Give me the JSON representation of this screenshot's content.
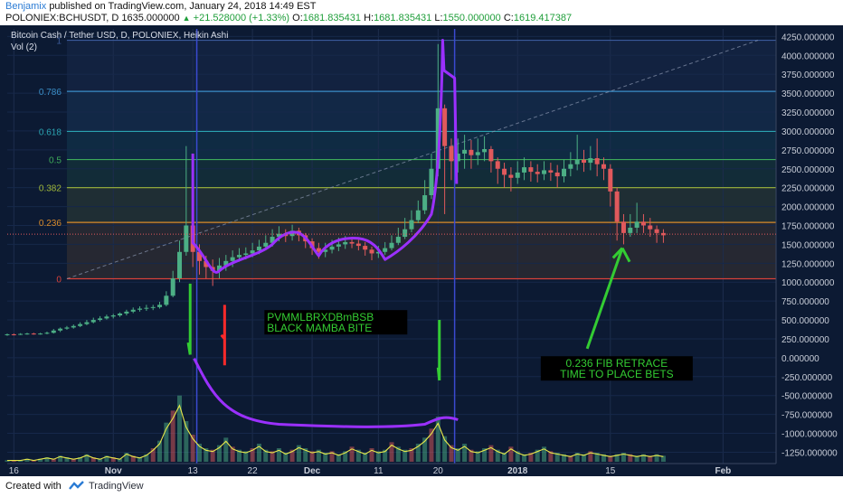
{
  "header": {
    "author": "Benjamix",
    "published_text": "published on TradingView.com, January 24, 2018 14:49 EST",
    "symbol": "POLONIEX:BCHUSDT, D",
    "last_price": "1635.000000",
    "change": "+21.528000 (+1.33%)",
    "ohlc": {
      "o_label": "O:",
      "o": "1681.835431",
      "h_label": "H:",
      "h": "1681.835431",
      "l_label": "L:",
      "l": "1550.000000",
      "c_label": "C:",
      "c": "1619.417387"
    }
  },
  "footer": {
    "created_with": "Created with",
    "brand": "TradingView"
  },
  "colors": {
    "background": "#0c1a33",
    "up": "#4caf85",
    "down": "#e0595c",
    "mamba": "#9b30ff",
    "annotation": "#33cc33",
    "red_mark": "#ff2a2a",
    "vol_line": "#e8e84a"
  },
  "chart_data": {
    "type": "candlestick",
    "title": "Bitcoin Cash / Tether USD, D, POLONIEX, Heikin Ashi",
    "volume_label": "Vol (2)",
    "y_axis": {
      "min": -1400,
      "max": 4350,
      "ticks": [
        "4250.000000",
        "4000.000000",
        "3750.000000",
        "3500.000000",
        "3250.000000",
        "3000.000000",
        "2750.000000",
        "2500.000000",
        "2250.000000",
        "2000.000000",
        "1750.000000",
        "1500.000000",
        "1250.000000",
        "1000.000000",
        "750.000000",
        "500.000000",
        "250.000000",
        "0.000000",
        "-250.000000",
        "-500.000000",
        "-750.000000",
        "-1000.000000",
        "-1250.000000"
      ],
      "tick_values": [
        4250,
        4000,
        3750,
        3500,
        3250,
        3000,
        2750,
        2500,
        2250,
        2000,
        1750,
        1500,
        1250,
        1000,
        750,
        500,
        250,
        0,
        -250,
        -500,
        -750,
        -1000,
        -1250
      ]
    },
    "x_axis": {
      "labels": [
        "16",
        "Nov",
        "13",
        "22",
        "Dec",
        "11",
        "20",
        "2018",
        "15",
        "Feb"
      ],
      "label_days": [
        -15,
        0,
        12,
        21,
        30,
        40,
        49,
        61,
        75,
        92
      ],
      "x_range": [
        -16,
        100
      ]
    },
    "fib_levels": [
      {
        "label": "1",
        "value": 4200,
        "color": "#3b5a9a"
      },
      {
        "label": "0.786",
        "value": 3524,
        "color": "#3a8ec7"
      },
      {
        "label": "0.618",
        "value": 2994,
        "color": "#2aa3b0"
      },
      {
        "label": "0.5",
        "value": 2622,
        "color": "#3daa5a"
      },
      {
        "label": "0.382",
        "value": 2250,
        "color": "#a0b83a"
      },
      {
        "label": "0.236",
        "value": 1790,
        "color": "#d98b2b"
      },
      {
        "label": "0",
        "value": 1045,
        "color": "#d9413a"
      }
    ],
    "current_price": 1635,
    "candles": [
      {
        "d": -16,
        "o": 300,
        "c": 310,
        "h": 320,
        "l": 290
      },
      {
        "d": -15,
        "o": 310,
        "c": 305,
        "h": 320,
        "l": 295
      },
      {
        "d": -14,
        "o": 305,
        "c": 315,
        "h": 325,
        "l": 300
      },
      {
        "d": -13,
        "o": 315,
        "c": 320,
        "h": 330,
        "l": 305
      },
      {
        "d": -12,
        "o": 320,
        "c": 315,
        "h": 330,
        "l": 305
      },
      {
        "d": -11,
        "o": 315,
        "c": 320,
        "h": 330,
        "l": 305
      },
      {
        "d": -10,
        "o": 320,
        "c": 330,
        "h": 345,
        "l": 310
      },
      {
        "d": -9,
        "o": 330,
        "c": 360,
        "h": 380,
        "l": 320
      },
      {
        "d": -8,
        "o": 360,
        "c": 385,
        "h": 400,
        "l": 340
      },
      {
        "d": -7,
        "o": 385,
        "c": 400,
        "h": 420,
        "l": 370
      },
      {
        "d": -6,
        "o": 400,
        "c": 420,
        "h": 440,
        "l": 385
      },
      {
        "d": -5,
        "o": 420,
        "c": 445,
        "h": 470,
        "l": 405
      },
      {
        "d": -4,
        "o": 445,
        "c": 470,
        "h": 500,
        "l": 430
      },
      {
        "d": -3,
        "o": 470,
        "c": 500,
        "h": 530,
        "l": 455
      },
      {
        "d": -2,
        "o": 500,
        "c": 520,
        "h": 550,
        "l": 480
      },
      {
        "d": -1,
        "o": 520,
        "c": 545,
        "h": 570,
        "l": 505
      },
      {
        "d": 0,
        "o": 545,
        "c": 560,
        "h": 580,
        "l": 520
      },
      {
        "d": 1,
        "o": 560,
        "c": 585,
        "h": 600,
        "l": 540
      },
      {
        "d": 2,
        "o": 585,
        "c": 610,
        "h": 635,
        "l": 560
      },
      {
        "d": 3,
        "o": 610,
        "c": 635,
        "h": 665,
        "l": 590
      },
      {
        "d": 4,
        "o": 635,
        "c": 650,
        "h": 680,
        "l": 610
      },
      {
        "d": 5,
        "o": 650,
        "c": 660,
        "h": 700,
        "l": 620
      },
      {
        "d": 6,
        "o": 660,
        "c": 670,
        "h": 700,
        "l": 630
      },
      {
        "d": 7,
        "o": 670,
        "c": 700,
        "h": 740,
        "l": 650
      },
      {
        "d": 8,
        "o": 700,
        "c": 820,
        "h": 880,
        "l": 680
      },
      {
        "d": 9,
        "o": 820,
        "c": 1050,
        "h": 1150,
        "l": 800
      },
      {
        "d": 10,
        "o": 1050,
        "c": 1400,
        "h": 1550,
        "l": 1000
      },
      {
        "d": 11,
        "o": 1400,
        "c": 1750,
        "h": 2800,
        "l": 1350
      },
      {
        "d": 12,
        "o": 1750,
        "c": 1400,
        "h": 1800,
        "l": 1200
      },
      {
        "d": 13,
        "o": 1400,
        "c": 1280,
        "h": 1500,
        "l": 1100
      },
      {
        "d": 14,
        "o": 1280,
        "c": 1200,
        "h": 1350,
        "l": 1050
      },
      {
        "d": 15,
        "o": 1200,
        "c": 1150,
        "h": 1300,
        "l": 950
      },
      {
        "d": 16,
        "o": 1150,
        "c": 1220,
        "h": 1320,
        "l": 1050
      },
      {
        "d": 17,
        "o": 1220,
        "c": 1280,
        "h": 1360,
        "l": 1150
      },
      {
        "d": 18,
        "o": 1280,
        "c": 1330,
        "h": 1420,
        "l": 1200
      },
      {
        "d": 19,
        "o": 1330,
        "c": 1360,
        "h": 1450,
        "l": 1270
      },
      {
        "d": 20,
        "o": 1360,
        "c": 1380,
        "h": 1460,
        "l": 1300
      },
      {
        "d": 21,
        "o": 1380,
        "c": 1420,
        "h": 1520,
        "l": 1330
      },
      {
        "d": 22,
        "o": 1420,
        "c": 1470,
        "h": 1560,
        "l": 1370
      },
      {
        "d": 23,
        "o": 1470,
        "c": 1520,
        "h": 1620,
        "l": 1420
      },
      {
        "d": 24,
        "o": 1520,
        "c": 1600,
        "h": 1700,
        "l": 1470
      },
      {
        "d": 25,
        "o": 1600,
        "c": 1640,
        "h": 1740,
        "l": 1540
      },
      {
        "d": 26,
        "o": 1640,
        "c": 1610,
        "h": 1700,
        "l": 1530
      },
      {
        "d": 27,
        "o": 1610,
        "c": 1680,
        "h": 1760,
        "l": 1550
      },
      {
        "d": 28,
        "o": 1680,
        "c": 1620,
        "h": 1720,
        "l": 1540
      },
      {
        "d": 29,
        "o": 1620,
        "c": 1540,
        "h": 1650,
        "l": 1450
      },
      {
        "d": 30,
        "o": 1540,
        "c": 1450,
        "h": 1580,
        "l": 1360
      },
      {
        "d": 31,
        "o": 1450,
        "c": 1400,
        "h": 1520,
        "l": 1310
      },
      {
        "d": 32,
        "o": 1400,
        "c": 1430,
        "h": 1520,
        "l": 1330
      },
      {
        "d": 33,
        "o": 1430,
        "c": 1470,
        "h": 1560,
        "l": 1380
      },
      {
        "d": 34,
        "o": 1470,
        "c": 1500,
        "h": 1590,
        "l": 1410
      },
      {
        "d": 35,
        "o": 1500,
        "c": 1530,
        "h": 1610,
        "l": 1440
      },
      {
        "d": 36,
        "o": 1530,
        "c": 1510,
        "h": 1600,
        "l": 1450
      },
      {
        "d": 37,
        "o": 1510,
        "c": 1480,
        "h": 1560,
        "l": 1420
      },
      {
        "d": 38,
        "o": 1480,
        "c": 1430,
        "h": 1530,
        "l": 1350
      },
      {
        "d": 39,
        "o": 1430,
        "c": 1380,
        "h": 1470,
        "l": 1290
      },
      {
        "d": 40,
        "o": 1380,
        "c": 1400,
        "h": 1480,
        "l": 1320
      },
      {
        "d": 41,
        "o": 1400,
        "c": 1450,
        "h": 1530,
        "l": 1360
      },
      {
        "d": 42,
        "o": 1450,
        "c": 1520,
        "h": 1620,
        "l": 1420
      },
      {
        "d": 43,
        "o": 1520,
        "c": 1600,
        "h": 1720,
        "l": 1490
      },
      {
        "d": 44,
        "o": 1600,
        "c": 1700,
        "h": 1850,
        "l": 1570
      },
      {
        "d": 45,
        "o": 1700,
        "c": 1820,
        "h": 1950,
        "l": 1660
      },
      {
        "d": 46,
        "o": 1820,
        "c": 1950,
        "h": 2080,
        "l": 1780
      },
      {
        "d": 47,
        "o": 1950,
        "c": 2150,
        "h": 2350,
        "l": 1900
      },
      {
        "d": 48,
        "o": 2150,
        "c": 2500,
        "h": 2700,
        "l": 2100
      },
      {
        "d": 49,
        "o": 2500,
        "c": 3300,
        "h": 4150,
        "l": 2400
      },
      {
        "d": 50,
        "o": 3300,
        "c": 2800,
        "h": 3350,
        "l": 1900
      },
      {
        "d": 51,
        "o": 2800,
        "c": 2600,
        "h": 2900,
        "l": 2350
      },
      {
        "d": 52,
        "o": 2600,
        "c": 2700,
        "h": 2900,
        "l": 2450
      },
      {
        "d": 53,
        "o": 2700,
        "c": 2750,
        "h": 2950,
        "l": 2500
      },
      {
        "d": 54,
        "o": 2750,
        "c": 2680,
        "h": 2880,
        "l": 2500
      },
      {
        "d": 55,
        "o": 2680,
        "c": 2720,
        "h": 2900,
        "l": 2550
      },
      {
        "d": 56,
        "o": 2720,
        "c": 2760,
        "h": 2930,
        "l": 2600
      },
      {
        "d": 57,
        "o": 2760,
        "c": 2600,
        "h": 2800,
        "l": 2450
      },
      {
        "d": 58,
        "o": 2600,
        "c": 2500,
        "h": 2650,
        "l": 2300
      },
      {
        "d": 59,
        "o": 2500,
        "c": 2420,
        "h": 2580,
        "l": 2250
      },
      {
        "d": 60,
        "o": 2420,
        "c": 2380,
        "h": 2520,
        "l": 2200
      },
      {
        "d": 61,
        "o": 2380,
        "c": 2450,
        "h": 2600,
        "l": 2300
      },
      {
        "d": 62,
        "o": 2450,
        "c": 2520,
        "h": 2650,
        "l": 2350
      },
      {
        "d": 63,
        "o": 2520,
        "c": 2460,
        "h": 2600,
        "l": 2330
      },
      {
        "d": 64,
        "o": 2460,
        "c": 2430,
        "h": 2560,
        "l": 2320
      },
      {
        "d": 65,
        "o": 2430,
        "c": 2480,
        "h": 2600,
        "l": 2350
      },
      {
        "d": 66,
        "o": 2480,
        "c": 2450,
        "h": 2580,
        "l": 2340
      },
      {
        "d": 67,
        "o": 2450,
        "c": 2400,
        "h": 2550,
        "l": 2250
      },
      {
        "d": 68,
        "o": 2400,
        "c": 2500,
        "h": 2620,
        "l": 2320
      },
      {
        "d": 69,
        "o": 2500,
        "c": 2560,
        "h": 2720,
        "l": 2400
      },
      {
        "d": 70,
        "o": 2560,
        "c": 2620,
        "h": 2950,
        "l": 2480
      },
      {
        "d": 71,
        "o": 2620,
        "c": 2580,
        "h": 2750,
        "l": 2460
      },
      {
        "d": 72,
        "o": 2580,
        "c": 2640,
        "h": 2800,
        "l": 2480
      },
      {
        "d": 73,
        "o": 2640,
        "c": 2560,
        "h": 2900,
        "l": 2400
      },
      {
        "d": 74,
        "o": 2560,
        "c": 2500,
        "h": 2650,
        "l": 2350
      },
      {
        "d": 75,
        "o": 2500,
        "c": 2200,
        "h": 2560,
        "l": 2000
      },
      {
        "d": 76,
        "o": 2200,
        "c": 1800,
        "h": 2250,
        "l": 1550
      },
      {
        "d": 77,
        "o": 1800,
        "c": 1650,
        "h": 1900,
        "l": 1500
      },
      {
        "d": 78,
        "o": 1650,
        "c": 1720,
        "h": 1900,
        "l": 1600
      },
      {
        "d": 79,
        "o": 1720,
        "c": 1800,
        "h": 2050,
        "l": 1650
      },
      {
        "d": 80,
        "o": 1800,
        "c": 1750,
        "h": 1900,
        "l": 1650
      },
      {
        "d": 81,
        "o": 1750,
        "c": 1700,
        "h": 1850,
        "l": 1600
      },
      {
        "d": 82,
        "o": 1700,
        "c": 1650,
        "h": 1750,
        "l": 1520
      },
      {
        "d": 83,
        "o": 1650,
        "c": 1620,
        "h": 1700,
        "l": 1520
      }
    ],
    "volume": [
      1,
      1,
      1,
      2,
      1,
      2,
      3,
      2,
      4,
      3,
      2,
      3,
      5,
      3,
      2,
      4,
      3,
      2,
      6,
      4,
      3,
      5,
      9,
      14,
      26,
      34,
      44,
      27,
      18,
      12,
      9,
      8,
      11,
      16,
      10,
      8,
      7,
      9,
      12,
      8,
      7,
      9,
      6,
      8,
      11,
      9,
      7,
      8,
      6,
      7,
      5,
      7,
      10,
      8,
      6,
      9,
      7,
      8,
      13,
      10,
      8,
      9,
      12,
      16,
      22,
      30,
      17,
      11,
      9,
      12,
      8,
      7,
      9,
      11,
      8,
      6,
      10,
      7,
      5,
      6,
      8,
      10,
      7,
      6,
      5,
      4,
      6,
      5,
      7,
      6,
      5,
      4,
      5,
      6,
      5,
      4,
      5,
      4,
      5,
      4
    ],
    "vol_x_start": -16,
    "vol_x_end": 83,
    "annotations": [
      {
        "text_lines": [
          "PVMMLBRXDBmBSB",
          "BLACK MAMBA BITE"
        ],
        "color": "#33cc33",
        "bg": "#000000"
      },
      {
        "text_lines": [
          "0.236 FIB RETRACE",
          "TIME TO PLACE BETS"
        ],
        "color": "#33cc33",
        "bg": "#000000"
      }
    ]
  }
}
